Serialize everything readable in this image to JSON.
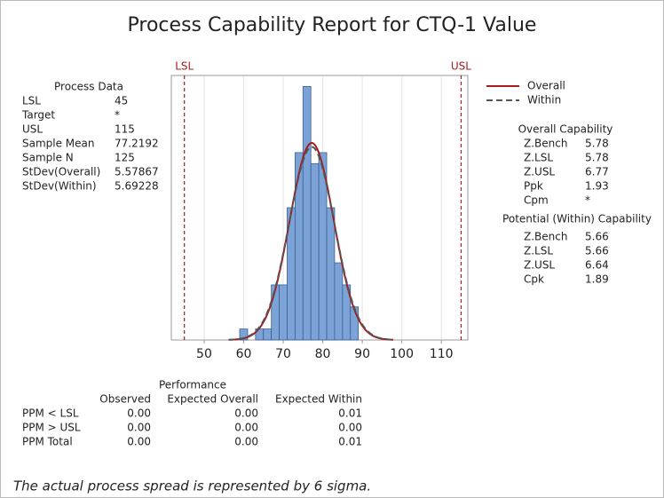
{
  "title": "Process Capability Report for CTQ-1 Value",
  "process_data": {
    "heading": "Process Data",
    "rows": [
      [
        "LSL",
        45
      ],
      [
        "Target",
        "*"
      ],
      [
        "USL",
        115
      ],
      [
        "Sample Mean",
        77.2192
      ],
      [
        "Sample N",
        125
      ],
      [
        "StDev(Overall)",
        5.57867
      ],
      [
        "StDev(Within)",
        5.69228
      ]
    ]
  },
  "chart_data": {
    "type": "histogram",
    "bins": [
      59,
      61,
      63,
      65,
      67,
      69,
      71,
      73,
      75,
      77,
      79,
      81,
      83,
      85,
      87,
      89
    ],
    "counts": [
      1,
      0,
      1,
      1,
      5,
      5,
      12,
      17,
      23,
      16,
      17,
      12,
      7,
      5,
      3
    ],
    "color": "#7ba3d8",
    "spec_color": "#a31d1d",
    "xlim": [
      41.7,
      116.7
    ],
    "xticks": [
      50,
      60,
      70,
      80,
      90,
      100,
      110
    ],
    "ylim": [
      0,
      24
    ],
    "grid": true,
    "series": [
      {
        "name": "Overall",
        "color": "#a31d1d",
        "dashed": false
      },
      {
        "name": "Within",
        "color": "#555555",
        "dashed": true
      }
    ]
  },
  "overall_capability": {
    "heading": "Overall Capability",
    "rows": [
      [
        "Z.Bench",
        5.78
      ],
      [
        "Z.LSL",
        5.78
      ],
      [
        "Z.USL",
        6.77
      ],
      [
        "Ppk",
        1.93
      ],
      [
        "Cpm",
        "*"
      ]
    ]
  },
  "potential_capability": {
    "heading": "Potential (Within) Capability",
    "rows": [
      [
        "Z.Bench",
        5.66
      ],
      [
        "Z.LSL",
        5.66
      ],
      [
        "Z.USL",
        6.64
      ],
      [
        "Cpk",
        1.89
      ]
    ]
  },
  "performance": {
    "heading": "Performance",
    "columns": [
      "Observed",
      "Expected Overall",
      "Expected Within"
    ],
    "rows": [
      [
        "PPM < LSL",
        "0.00",
        "0.00",
        "0.01"
      ],
      [
        "PPM > USL",
        "0.00",
        "0.00",
        "0.00"
      ],
      [
        "PPM Total",
        "0.00",
        "0.00",
        "0.01"
      ]
    ]
  },
  "footnote": "The actual process spread is represented by 6 sigma."
}
